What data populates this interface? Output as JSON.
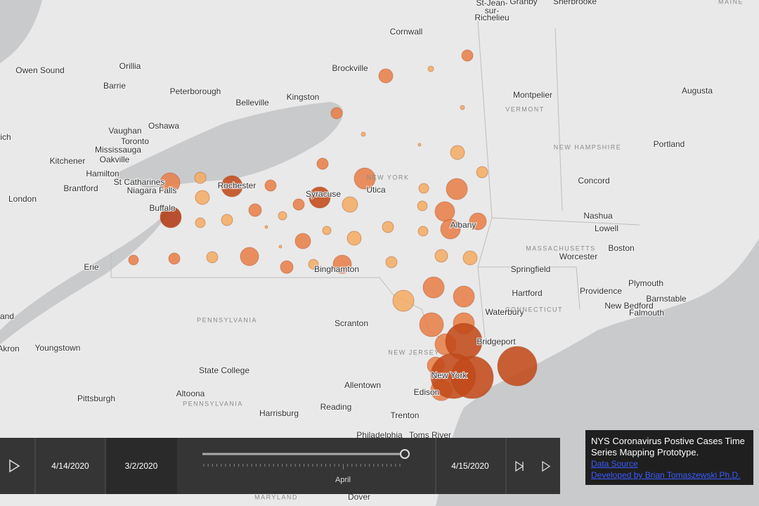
{
  "places": [
    "St-Jean-",
    "sur-",
    "Richelieu",
    "Granby",
    "Sherbrooke",
    "Cornwall",
    "Owen Sound",
    "Orillia",
    "Brockville",
    "Barrie",
    "Peterborough",
    "Belleville",
    "Kingston",
    "Montpelier",
    "Augusta",
    "Oshawa",
    "Vaughan",
    "Toronto",
    "Mississauga",
    "rich",
    "Oakville",
    "Kitchener",
    "Hamilton",
    "Portland",
    "St Catharines",
    "Niagara Falls",
    "Brantford",
    "Rochester",
    "Syracuse",
    "Utica",
    "Concord",
    "London",
    "Buffalo",
    "Nashua",
    "Lowell",
    "Albany",
    "Boston",
    "Worcester",
    "Erie",
    "Binghamton",
    "Springfield",
    "Plymouth",
    "Hartford",
    "Providence",
    "Barnstable",
    "Waterbury",
    "New Bedford",
    "Falmouth",
    "and",
    "Scranton",
    "Bridgeport",
    "Youngstown",
    "Akron",
    "State College",
    "New York",
    "Allentown",
    "Edison",
    "Altoona",
    "Pittsburgh",
    "Reading",
    "Harrisburg",
    "Trenton",
    "Philadelphia",
    "Toms River",
    "Dover"
  ],
  "regions": [
    "MAINE",
    "VERMONT",
    "NEW HAMPSHIRE",
    "NEW YORK",
    "MASSACHUSETTS",
    "CONNECTICUT",
    "PENNSYLVANIA",
    "NEW JERSEY",
    "PENNSYLVANIA",
    "MARYLAND"
  ],
  "controls": {
    "current_date": "4/14/2020",
    "start_date": "3/2/2020",
    "end_date": "4/15/2020",
    "month_label": "April"
  },
  "info": {
    "title": "NYS Coronavirus Postive Cases Time Series Mapping Prototype.",
    "data_source": "Data Source",
    "developer": "Developed by Brian Tomaszewski Ph.D."
  }
}
